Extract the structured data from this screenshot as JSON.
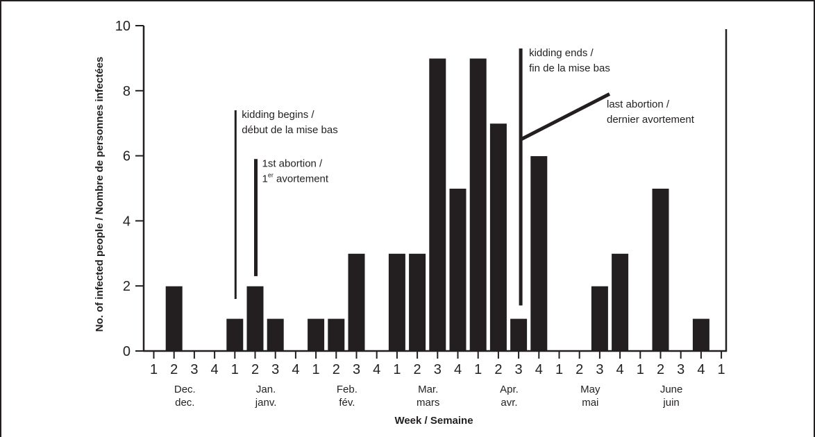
{
  "chart_data": {
    "type": "bar",
    "xlabel": "Week / Semaine",
    "ylabel": "No. of infected people / Nombre de personnes infectées",
    "ylim": [
      0,
      10
    ],
    "y_ticks": [
      0,
      2,
      4,
      6,
      8,
      10
    ],
    "weeks": [
      "1",
      "2",
      "3",
      "4",
      "1",
      "2",
      "3",
      "4",
      "1",
      "2",
      "3",
      "4",
      "1",
      "2",
      "3",
      "4",
      "1",
      "2",
      "3",
      "4",
      "1",
      "2",
      "3",
      "4",
      "1",
      "2",
      "3",
      "4",
      "1"
    ],
    "months": [
      {
        "en": "Dec.",
        "fr": "dec."
      },
      {
        "en": "Jan.",
        "fr": "janv."
      },
      {
        "en": "Feb.",
        "fr": "fév."
      },
      {
        "en": "Mar.",
        "fr": "mars"
      },
      {
        "en": "Apr.",
        "fr": "avr."
      },
      {
        "en": "May",
        "fr": "mai"
      },
      {
        "en": "June",
        "fr": "juin"
      }
    ],
    "values": [
      0,
      2,
      0,
      0,
      1,
      2,
      1,
      0,
      1,
      1,
      3,
      0,
      3,
      3,
      9,
      5,
      9,
      7,
      1,
      6,
      0,
      0,
      2,
      3,
      0,
      5,
      0,
      1,
      0
    ],
    "grid": false,
    "annotations": [
      {
        "line1": "kidding begins /",
        "line2": "début de la mise bas",
        "week_index": 4,
        "from": 1.6,
        "to": 7.4
      },
      {
        "line1": "1st abortion /",
        "line2_prefix": "1",
        "line2_sup": "er",
        "line2_suffix": " avortement",
        "week_index": 5,
        "from": 2.3,
        "to": 5.9
      },
      {
        "line1": "kidding ends /",
        "line2": "fin de la mise bas",
        "week_index": 18,
        "from": 1.4,
        "to": 9.3
      },
      {
        "line1": "last abortion /",
        "line2": "dernier avortement",
        "week_index": 18,
        "from": 6.5,
        "to": 7.9
      }
    ]
  }
}
